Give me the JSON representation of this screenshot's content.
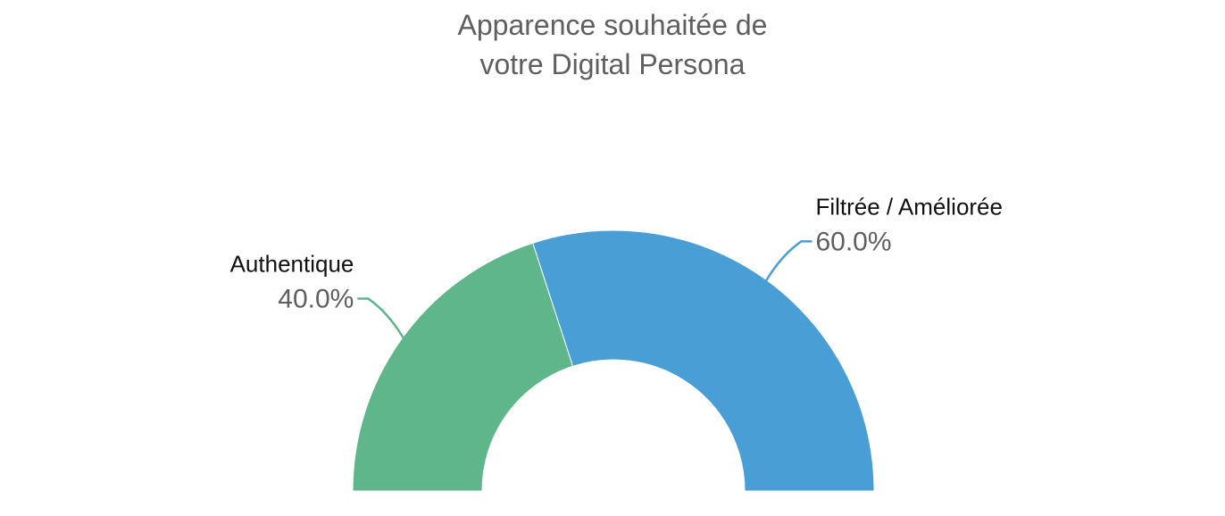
{
  "chart_data": {
    "type": "pie",
    "variant": "semi-donut",
    "title_lines": [
      "Apparence souhaitée de",
      "votre Digital Persona"
    ],
    "slices": [
      {
        "label": "Authentique",
        "value": 40.0,
        "display": "40.0%",
        "color": "#5fb68b",
        "label_side": "left"
      },
      {
        "label": "Filtrée / Améliorée",
        "value": 60.0,
        "display": "60.0%",
        "color": "#4a9ed6",
        "label_side": "right"
      }
    ],
    "legend": "none"
  }
}
